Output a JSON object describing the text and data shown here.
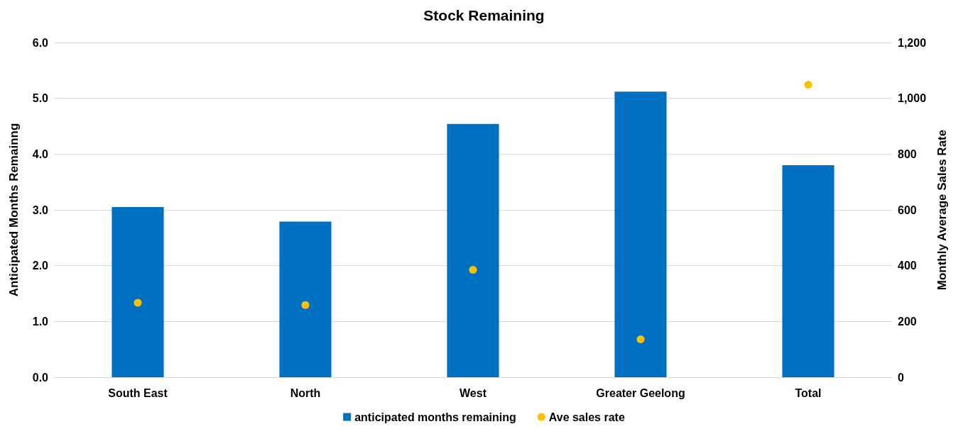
{
  "chart_data": {
    "type": "bar",
    "title": "Stock Remaining",
    "ylabel": "Anticipated Months Remainng",
    "y2label": "Monthly Average Sales Rate",
    "categories": [
      "South East",
      "North",
      "West",
      "Greater Geelong",
      "Total"
    ],
    "series": [
      {
        "name": "anticipated months remaining",
        "color": "#0070c0",
        "values": [
          3.05,
          2.79,
          4.54,
          5.12,
          3.8
        ]
      },
      {
        "name": "Ave sales rate",
        "type": "scatter",
        "axis": "y2",
        "color": "#ffc000",
        "marker": "circle",
        "values": [
          267,
          259,
          385,
          136,
          1049
        ]
      }
    ],
    "ylim": [
      0,
      6
    ],
    "yticks": [
      {
        "value": 0,
        "label": "0.0"
      },
      {
        "value": 1,
        "label": "1.0"
      },
      {
        "value": 2,
        "label": "2.0"
      },
      {
        "value": 3,
        "label": "3.0"
      },
      {
        "value": 4,
        "label": "4.0"
      },
      {
        "value": 5,
        "label": "5.0"
      },
      {
        "value": 6,
        "label": "6.0"
      }
    ],
    "y2lim": [
      0,
      1200
    ],
    "y2ticks": [
      0,
      200,
      400,
      600,
      800,
      {
        "value": 1000,
        "label": "1,000"
      },
      {
        "value": 1200,
        "label": "1,200"
      }
    ],
    "grid": "y",
    "legend": "bottom"
  }
}
